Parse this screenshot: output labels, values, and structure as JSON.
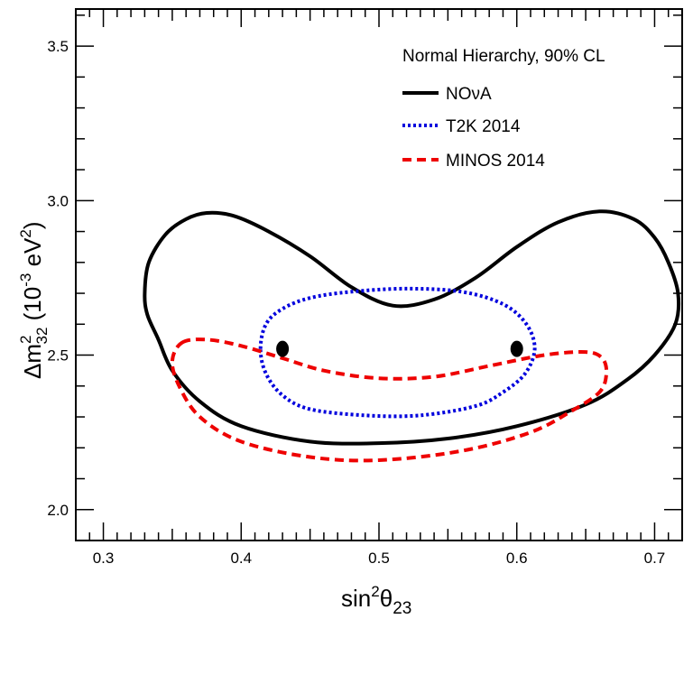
{
  "chart_data": {
    "type": "line",
    "xlabel": {
      "base": "sin",
      "sup": "2",
      "greek": "θ",
      "sub": "23"
    },
    "ylabel": {
      "prefix": "Δm",
      "sup": "2",
      "sub": "32",
      "unit_open": " (10",
      "unit_exp": "-3",
      "unit_mid": " eV",
      "unit_exp2": "2",
      "unit_close": ")"
    },
    "xlim": [
      0.28,
      0.72
    ],
    "ylim": [
      1.9,
      3.62
    ],
    "x_ticks": [
      0.3,
      0.4,
      0.5,
      0.6,
      0.7
    ],
    "x_tick_labels": [
      "0.3",
      "0.4",
      "0.5",
      "0.6",
      "0.7"
    ],
    "y_ticks": [
      2.0,
      2.5,
      3.0,
      3.5
    ],
    "y_tick_labels": [
      "2.0",
      "2.5",
      "3.0",
      "3.5"
    ],
    "legend": {
      "title": "Normal Hierarchy, 90% CL",
      "placement": "top-right",
      "entries": [
        "NOνA",
        "T2K 2014",
        "MINOS 2014"
      ]
    },
    "series": [
      {
        "name": "NOνA",
        "color": "#000000",
        "style": "solid",
        "closed": true,
        "points": [
          [
            0.33,
            2.7
          ],
          [
            0.333,
            2.8
          ],
          [
            0.345,
            2.89
          ],
          [
            0.36,
            2.94
          ],
          [
            0.375,
            2.96
          ],
          [
            0.395,
            2.95
          ],
          [
            0.42,
            2.9
          ],
          [
            0.45,
            2.82
          ],
          [
            0.48,
            2.72
          ],
          [
            0.51,
            2.66
          ],
          [
            0.54,
            2.68
          ],
          [
            0.57,
            2.75
          ],
          [
            0.6,
            2.85
          ],
          [
            0.63,
            2.93
          ],
          [
            0.66,
            2.965
          ],
          [
            0.685,
            2.94
          ],
          [
            0.7,
            2.88
          ],
          [
            0.71,
            2.8
          ],
          [
            0.717,
            2.7
          ],
          [
            0.715,
            2.6
          ],
          [
            0.7,
            2.5
          ],
          [
            0.68,
            2.42
          ],
          [
            0.65,
            2.34
          ],
          [
            0.6,
            2.27
          ],
          [
            0.55,
            2.23
          ],
          [
            0.5,
            2.215
          ],
          [
            0.45,
            2.22
          ],
          [
            0.4,
            2.27
          ],
          [
            0.37,
            2.35
          ],
          [
            0.35,
            2.45
          ],
          [
            0.34,
            2.55
          ],
          [
            0.332,
            2.63
          ]
        ]
      },
      {
        "name": "T2K 2014",
        "color": "#0000dd",
        "style": "dotted",
        "closed": true,
        "points": [
          [
            0.414,
            2.52
          ],
          [
            0.418,
            2.6
          ],
          [
            0.43,
            2.65
          ],
          [
            0.45,
            2.685
          ],
          [
            0.48,
            2.705
          ],
          [
            0.52,
            2.715
          ],
          [
            0.56,
            2.705
          ],
          [
            0.59,
            2.665
          ],
          [
            0.607,
            2.6
          ],
          [
            0.613,
            2.52
          ],
          [
            0.606,
            2.44
          ],
          [
            0.59,
            2.38
          ],
          [
            0.57,
            2.335
          ],
          [
            0.53,
            2.305
          ],
          [
            0.49,
            2.305
          ],
          [
            0.45,
            2.325
          ],
          [
            0.43,
            2.37
          ],
          [
            0.418,
            2.44
          ]
        ]
      },
      {
        "name": "MINOS 2014",
        "color": "#ee0000",
        "style": "dashed",
        "closed": true,
        "points": [
          [
            0.357,
            2.54
          ],
          [
            0.375,
            2.55
          ],
          [
            0.4,
            2.53
          ],
          [
            0.43,
            2.49
          ],
          [
            0.46,
            2.45
          ],
          [
            0.5,
            2.425
          ],
          [
            0.54,
            2.43
          ],
          [
            0.58,
            2.465
          ],
          [
            0.62,
            2.5
          ],
          [
            0.65,
            2.51
          ],
          [
            0.662,
            2.49
          ],
          [
            0.665,
            2.44
          ],
          [
            0.66,
            2.38
          ],
          [
            0.64,
            2.32
          ],
          [
            0.61,
            2.25
          ],
          [
            0.56,
            2.19
          ],
          [
            0.5,
            2.16
          ],
          [
            0.45,
            2.17
          ],
          [
            0.4,
            2.22
          ],
          [
            0.37,
            2.3
          ],
          [
            0.355,
            2.4
          ],
          [
            0.35,
            2.48
          ]
        ]
      }
    ],
    "best_fit_points": [
      {
        "x": 0.43,
        "y": 2.52
      },
      {
        "x": 0.6,
        "y": 2.52
      }
    ]
  }
}
